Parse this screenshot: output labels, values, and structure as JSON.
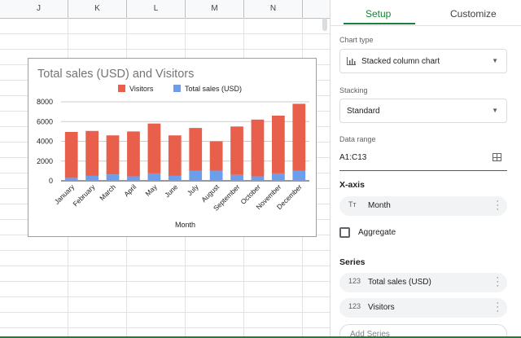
{
  "sheet": {
    "columns": [
      "J",
      "K",
      "L",
      "M",
      "N"
    ]
  },
  "chart_data": {
    "type": "bar",
    "stacked": true,
    "title": "Total sales (USD) and Visitors",
    "xlabel": "Month",
    "ylabel": "",
    "ylim": [
      0,
      8000
    ],
    "yticks": [
      "0",
      "2000",
      "4000",
      "6000",
      "8000"
    ],
    "legend_position": "top",
    "categories": [
      "January",
      "February",
      "March",
      "April",
      "May",
      "June",
      "July",
      "August",
      "September",
      "October",
      "November",
      "December"
    ],
    "series": [
      {
        "name": "Total sales (USD)",
        "color": "#6d9eeb",
        "values": [
          300,
          500,
          650,
          450,
          750,
          500,
          1000,
          1000,
          600,
          450,
          750,
          1000
        ]
      },
      {
        "name": "Visitors",
        "color": "#e8604c",
        "values": [
          4650,
          4550,
          3950,
          4550,
          5050,
          4100,
          4350,
          3000,
          4900,
          5750,
          5850,
          6800
        ]
      }
    ],
    "legend_order": [
      "Visitors",
      "Total sales (USD)"
    ],
    "grid": true
  },
  "panel": {
    "tabs": {
      "setup": "Setup",
      "customize": "Customize"
    },
    "chart_type_label": "Chart type",
    "chart_type_value": "Stacked column chart",
    "stacking_label": "Stacking",
    "stacking_value": "Standard",
    "data_range_label": "Data range",
    "data_range_value": "A1:C13",
    "xaxis_title": "X-axis",
    "xaxis_field": {
      "icon": "Tт",
      "label": "Month"
    },
    "aggregate_label": "Aggregate",
    "series_title": "Series",
    "series": [
      {
        "icon": "123",
        "label": "Total sales (USD)"
      },
      {
        "icon": "123",
        "label": "Visitors"
      }
    ],
    "add_series_label": "Add Series"
  },
  "colors": {
    "accent": "#188038",
    "visitors": "#e8604c",
    "sales": "#6d9eeb"
  }
}
